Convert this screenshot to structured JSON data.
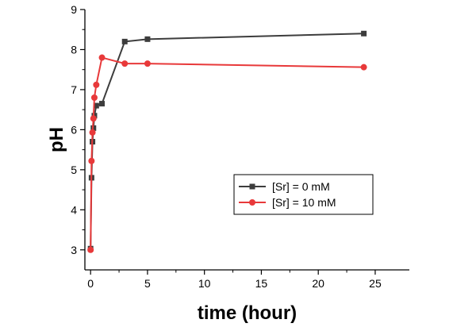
{
  "chart_data": {
    "type": "line",
    "xlabel": "time (hour)",
    "ylabel": "pH",
    "xlim": [
      -0.5,
      28
    ],
    "ylim": [
      2.5,
      9
    ],
    "xticks": [
      0,
      5,
      10,
      15,
      20,
      25
    ],
    "yticks": [
      3,
      4,
      5,
      6,
      7,
      8,
      9
    ],
    "grid": false,
    "legend_position": "lower-right",
    "series": [
      {
        "name": "[Sr] = 0 mM",
        "color": "#3d3d3d",
        "marker": "square",
        "x": [
          0,
          0.083,
          0.167,
          0.25,
          0.333,
          0.5,
          1,
          3,
          5,
          24
        ],
        "y": [
          3.03,
          4.8,
          5.7,
          6.04,
          6.35,
          6.6,
          6.65,
          8.2,
          8.26,
          8.4
        ]
      },
      {
        "name": "[Sr] = 10 mM",
        "color": "#e8393a",
        "marker": "circle",
        "x": [
          0,
          0.083,
          0.167,
          0.25,
          0.333,
          0.5,
          1,
          3,
          5,
          24
        ],
        "y": [
          3.0,
          5.22,
          5.93,
          6.28,
          6.8,
          7.12,
          7.8,
          7.65,
          7.65,
          7.56
        ]
      }
    ]
  }
}
